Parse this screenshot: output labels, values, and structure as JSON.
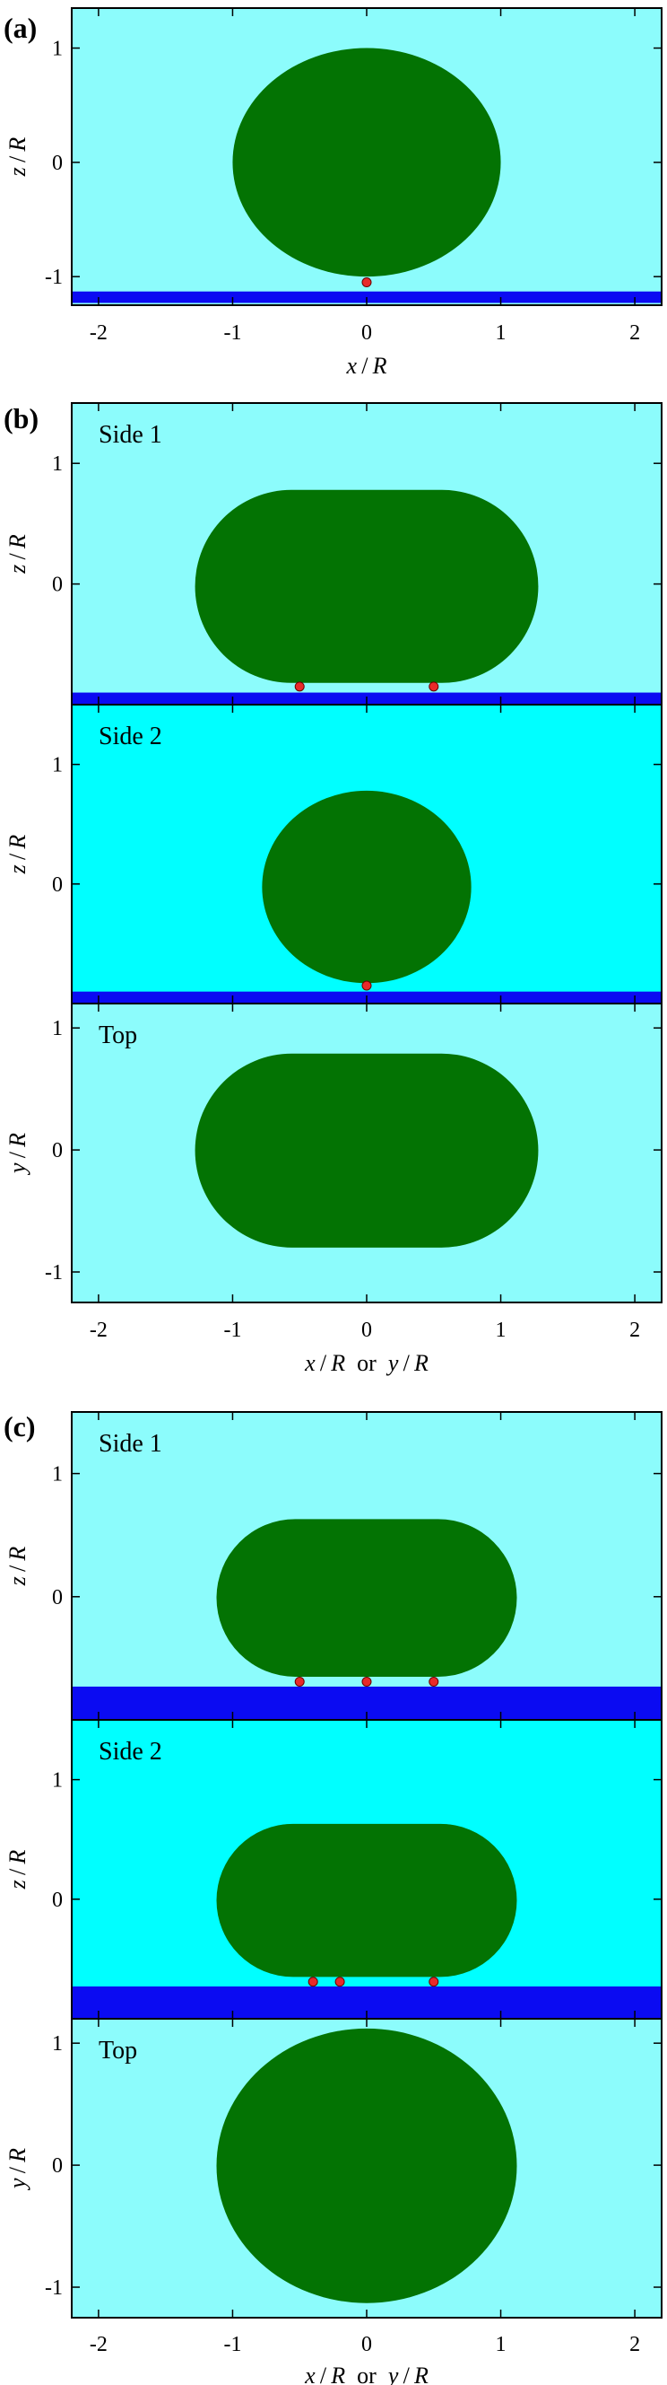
{
  "figure": {
    "colors": {
      "background_light": "#8cfcfc",
      "background_bright": "#00ffff",
      "particle": "#037303",
      "substrate": "#0b0bf2",
      "contact_point": "#e82a2a",
      "axes": "#000000"
    }
  },
  "panels": [
    {
      "letter": "(a)",
      "subpanels": [
        {
          "label": "",
          "background": "light",
          "ylabel": {
            "pre": "z",
            "post": "R"
          },
          "xlim": [
            -2.2,
            2.2
          ],
          "ylim": [
            -1.25,
            1.35
          ],
          "yticks": [
            -1,
            0,
            1
          ],
          "ytick_labels": [
            "-1",
            "0",
            "1"
          ],
          "shape": {
            "type": "ellipse",
            "x_range": [
              -1.0,
              1.0
            ],
            "y_range": [
              -1.0,
              1.0
            ]
          },
          "substrate": {
            "y_range": [
              -1.23,
              -1.13
            ]
          },
          "contacts": [
            {
              "x": 0.0,
              "y": -1.05
            }
          ]
        }
      ],
      "xticks": [
        -2,
        -1,
        0,
        1,
        2
      ],
      "xtick_labels": [
        "-2",
        "-1",
        "0",
        "1",
        "2"
      ],
      "xlabel": {
        "pre": "x",
        "post": "R",
        "or": "",
        "alt": ""
      }
    },
    {
      "letter": "(b)",
      "subpanels": [
        {
          "label": "Side 1",
          "background": "light",
          "ylabel": {
            "pre": "z",
            "post": "R"
          },
          "xlim": [
            -2.2,
            2.2
          ],
          "ylim": [
            -1.0,
            1.5
          ],
          "yticks": [
            0,
            1
          ],
          "ytick_labels": [
            "0",
            "1"
          ],
          "shape": {
            "type": "stadium",
            "x_range": [
              -1.28,
              1.28
            ],
            "y_range": [
              -0.82,
              0.78
            ]
          },
          "substrate": {
            "y_range": [
              -1.0,
              -0.9
            ]
          },
          "contacts": [
            {
              "x": -0.5,
              "y": -0.85
            },
            {
              "x": 0.5,
              "y": -0.85
            }
          ]
        },
        {
          "label": "Side 2",
          "background": "bright",
          "ylabel": {
            "pre": "z",
            "post": "R"
          },
          "xlim": [
            -2.2,
            2.2
          ],
          "ylim": [
            -1.0,
            1.5
          ],
          "yticks": [
            0,
            1
          ],
          "ytick_labels": [
            "0",
            "1"
          ],
          "shape": {
            "type": "ellipse",
            "x_range": [
              -0.78,
              0.78
            ],
            "y_range": [
              -0.83,
              0.78
            ]
          },
          "substrate": {
            "y_range": [
              -1.0,
              -0.9
            ]
          },
          "contacts": [
            {
              "x": 0.0,
              "y": -0.85
            }
          ]
        },
        {
          "label": "Top",
          "background": "light",
          "ylabel": {
            "pre": "y",
            "post": "R"
          },
          "xlim": [
            -2.2,
            2.2
          ],
          "ylim": [
            -1.25,
            1.2
          ],
          "yticks": [
            -1,
            0,
            1
          ],
          "ytick_labels": [
            "-1",
            "0",
            "1"
          ],
          "shape": {
            "type": "stadium",
            "x_range": [
              -1.28,
              1.28
            ],
            "y_range": [
              -0.8,
              0.79
            ]
          },
          "substrate": null,
          "contacts": []
        }
      ],
      "xticks": [
        -2,
        -1,
        0,
        1,
        2
      ],
      "xtick_labels": [
        "-2",
        "-1",
        "0",
        "1",
        "2"
      ],
      "xlabel": {
        "pre": "x",
        "post": "R",
        "or": "or",
        "alt": "y"
      }
    },
    {
      "letter": "(c)",
      "subpanels": [
        {
          "label": "Side 1",
          "background": "light",
          "ylabel": {
            "pre": "z",
            "post": "R"
          },
          "xlim": [
            -2.2,
            2.2
          ],
          "ylim": [
            -1.0,
            1.5
          ],
          "yticks": [
            0,
            1
          ],
          "ytick_labels": [
            "0",
            "1"
          ],
          "shape": {
            "type": "stadium",
            "x_range": [
              -1.12,
              1.12
            ],
            "y_range": [
              -0.65,
              0.63
            ]
          },
          "substrate": {
            "y_range": [
              -1.0,
              -0.73
            ]
          },
          "contacts": [
            {
              "x": -0.5,
              "y": -0.69
            },
            {
              "x": 0.0,
              "y": -0.69
            },
            {
              "x": 0.5,
              "y": -0.69
            }
          ]
        },
        {
          "label": "Side 2",
          "background": "bright",
          "ylabel": {
            "pre": "z",
            "post": "R"
          },
          "xlim": [
            -2.2,
            2.2
          ],
          "ylim": [
            -1.0,
            1.5
          ],
          "yticks": [
            0,
            1
          ],
          "ytick_labels": [
            "0",
            "1"
          ],
          "shape": {
            "type": "stadium",
            "x_range": [
              -1.12,
              1.12
            ],
            "y_range": [
              -0.65,
              0.63
            ]
          },
          "substrate": {
            "y_range": [
              -1.0,
              -0.73
            ]
          },
          "contacts": [
            {
              "x": -0.4,
              "y": -0.69
            },
            {
              "x": -0.2,
              "y": -0.69
            },
            {
              "x": 0.5,
              "y": -0.69
            }
          ]
        },
        {
          "label": "Top",
          "background": "light",
          "ylabel": {
            "pre": "y",
            "post": "R"
          },
          "xlim": [
            -2.2,
            2.2
          ],
          "ylim": [
            -1.25,
            1.2
          ],
          "yticks": [
            -1,
            0,
            1
          ],
          "ytick_labels": [
            "-1",
            "0",
            "1"
          ],
          "shape": {
            "type": "ellipse",
            "x_range": [
              -1.12,
              1.12
            ],
            "y_range": [
              -1.13,
              1.12
            ]
          },
          "substrate": null,
          "contacts": []
        }
      ],
      "xticks": [
        -2,
        -1,
        0,
        1,
        2
      ],
      "xtick_labels": [
        "-2",
        "-1",
        "0",
        "1",
        "2"
      ],
      "xlabel": {
        "pre": "x",
        "post": "R",
        "or": "or",
        "alt": "y"
      }
    }
  ]
}
